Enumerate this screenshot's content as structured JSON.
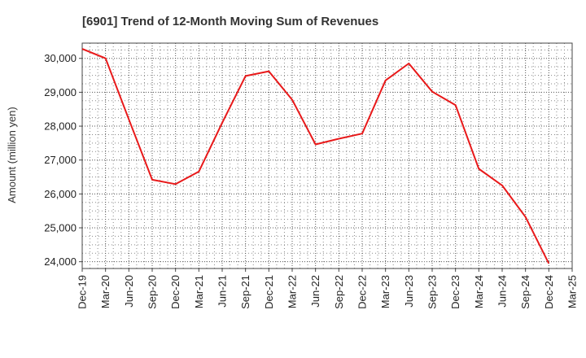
{
  "chart_data": {
    "type": "line",
    "title": "[6901]  Trend of 12-Month Moving Sum of Revenues",
    "xlabel": "",
    "ylabel": "Amount (million yen)",
    "categories": [
      "Dec-19",
      "Mar-20",
      "Jun-20",
      "Sep-20",
      "Dec-20",
      "Mar-21",
      "Jun-21",
      "Sep-21",
      "Dec-21",
      "Mar-22",
      "Jun-22",
      "Sep-22",
      "Dec-22",
      "Mar-23",
      "Jun-23",
      "Sep-23",
      "Dec-23",
      "Mar-24",
      "Jun-24",
      "Sep-24",
      "Dec-24",
      "Mar-25"
    ],
    "series": [
      {
        "values": [
          30280,
          30000,
          28200,
          26420,
          26290,
          26660,
          28100,
          29480,
          29620,
          28780,
          27460,
          27630,
          27780,
          29350,
          29850,
          29020,
          28620,
          26740,
          26250,
          25320,
          23950,
          null
        ],
        "color": "#e8191a"
      }
    ],
    "ylim": [
      23800,
      30450
    ],
    "yticks": [
      24000,
      25000,
      26000,
      27000,
      28000,
      29000,
      30000
    ],
    "ytick_labels": [
      "24,000",
      "25,000",
      "26,000",
      "27,000",
      "28,000",
      "29,000",
      "30,000"
    ],
    "grid": true,
    "grid_style": "dotted",
    "legend": "none"
  }
}
